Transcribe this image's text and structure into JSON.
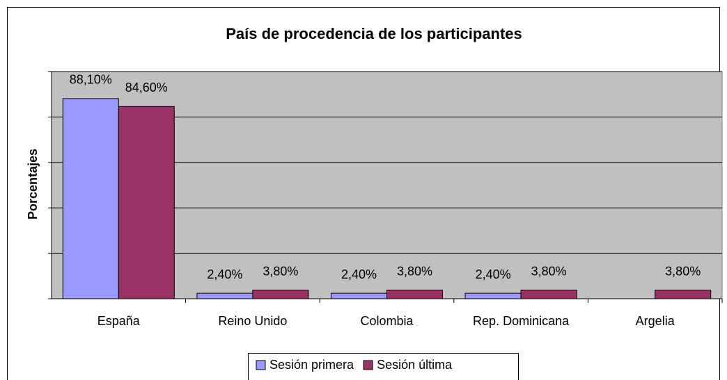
{
  "chart_data": {
    "type": "bar",
    "title": "País de procedencia de los participantes",
    "y_label": "Porcentajes",
    "categories": [
      "España",
      "Reino Unido",
      "Colombia",
      "Rep. Dominicana",
      "Argelia"
    ],
    "series": [
      {
        "name": "Sesión primera",
        "color": "#9999ff",
        "values": [
          88.1,
          2.4,
          2.4,
          2.4,
          null
        ],
        "value_labels": [
          "88,10%",
          "2,40%",
          "2,40%",
          "2,40%",
          null
        ]
      },
      {
        "name": "Sesión última",
        "color": "#993366",
        "values": [
          84.6,
          3.8,
          3.8,
          3.8,
          3.8
        ],
        "value_labels": [
          "84,60%",
          "3,80%",
          "3,80%",
          "3,80%",
          "3,80%"
        ]
      }
    ],
    "ylim": [
      0,
      100
    ],
    "yticks": [
      0,
      20,
      40,
      60,
      80,
      100
    ],
    "grid": true,
    "legend": "bottom"
  }
}
